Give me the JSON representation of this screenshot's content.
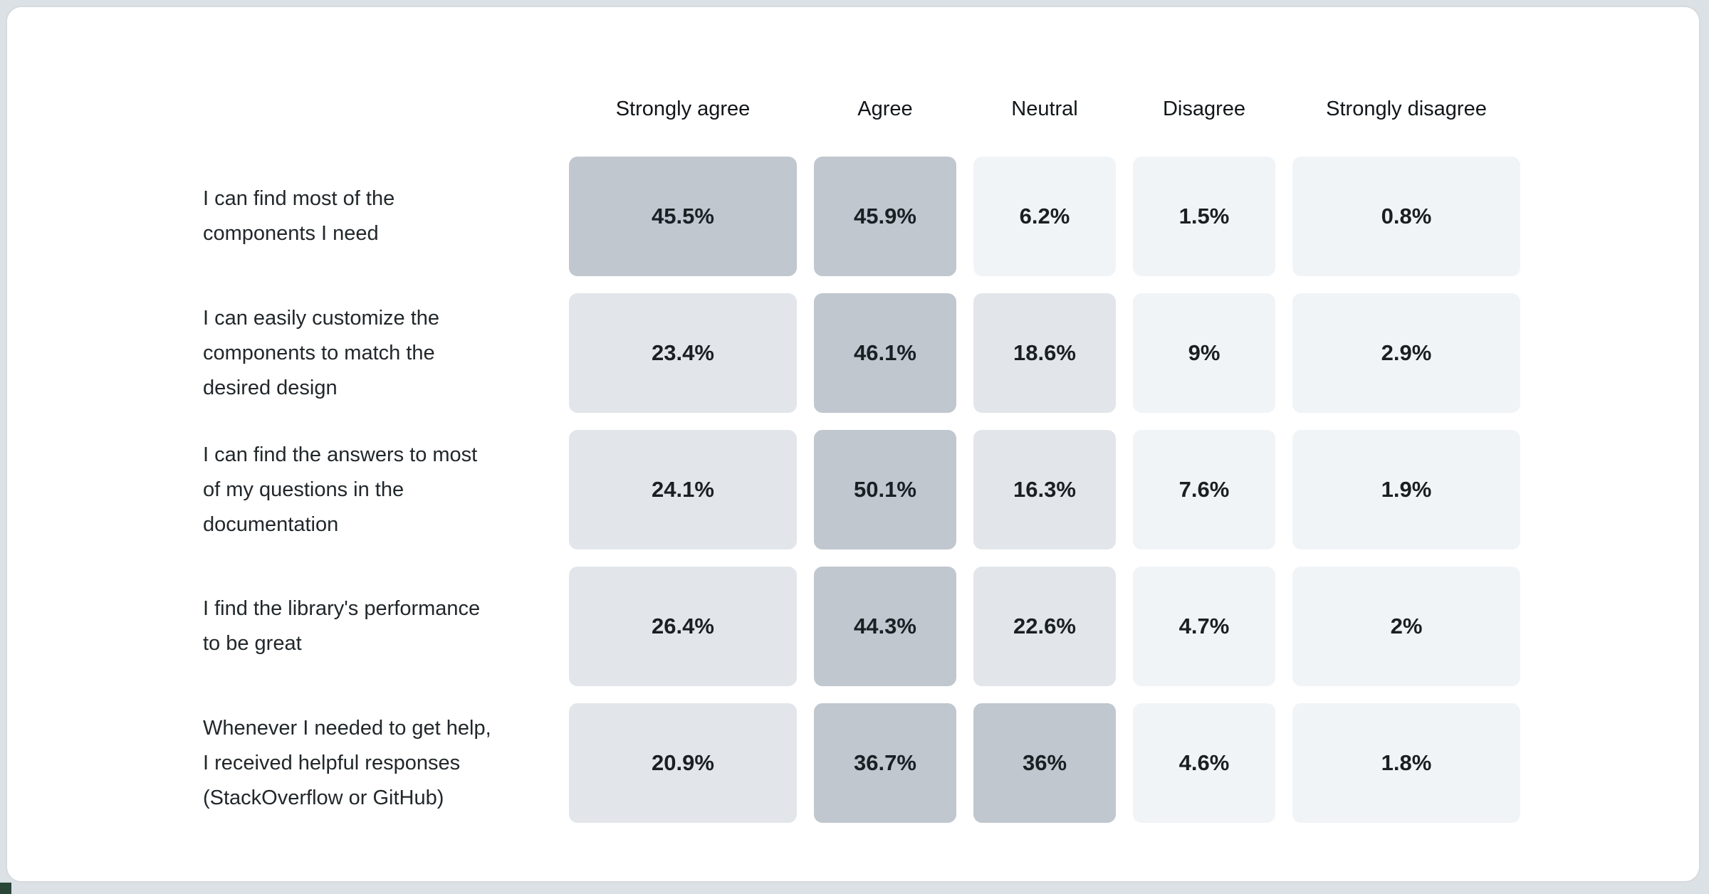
{
  "page": {
    "background_color": "#dce1e6",
    "card_background": "#ffffff",
    "card_border_color": "#d5dade",
    "corner_accent_color": "#2a4639"
  },
  "chart_data": {
    "type": "heatmap",
    "title": "",
    "legend": "none",
    "columns": [
      "Strongly agree",
      "Agree",
      "Neutral",
      "Disagree",
      "Strongly disagree"
    ],
    "rows": [
      {
        "label": "I can find most of the\ncomponents I need",
        "values": [
          45.5,
          45.9,
          6.2,
          1.5,
          0.8
        ],
        "display": [
          "45.5%",
          "45.9%",
          "6.2%",
          "1.5%",
          "0.8%"
        ]
      },
      {
        "label": "I can easily customize the\ncomponents to match the\ndesired design",
        "values": [
          23.4,
          46.1,
          18.6,
          9,
          2.9
        ],
        "display": [
          "23.4%",
          "46.1%",
          "18.6%",
          "9%",
          "2.9%"
        ]
      },
      {
        "label": "I can find the answers to most\nof my questions in the\ndocumentation",
        "values": [
          24.1,
          50.1,
          16.3,
          7.6,
          1.9
        ],
        "display": [
          "24.1%",
          "50.1%",
          "16.3%",
          "7.6%",
          "1.9%"
        ]
      },
      {
        "label": "I find the library's performance\nto be great",
        "values": [
          26.4,
          44.3,
          22.6,
          4.7,
          2
        ],
        "display": [
          "26.4%",
          "44.3%",
          "22.6%",
          "4.7%",
          "2%"
        ]
      },
      {
        "label": "Whenever I needed to get help,\nI received helpful responses\n(StackOverflow or GitHub)",
        "values": [
          20.9,
          36.7,
          36,
          4.6,
          1.8
        ],
        "display": [
          "20.9%",
          "36.7%",
          "36%",
          "4.6%",
          "1.8%"
        ]
      }
    ],
    "color_scale": {
      "light": "#f1f4f7",
      "medium": "#e2e6ea",
      "dark": "#c0c7ce",
      "threshold_medium": 10,
      "threshold_dark": 30
    },
    "value_text_color": "#191f23",
    "header_text_color": "#121619",
    "label_text_color": "#21272a"
  }
}
